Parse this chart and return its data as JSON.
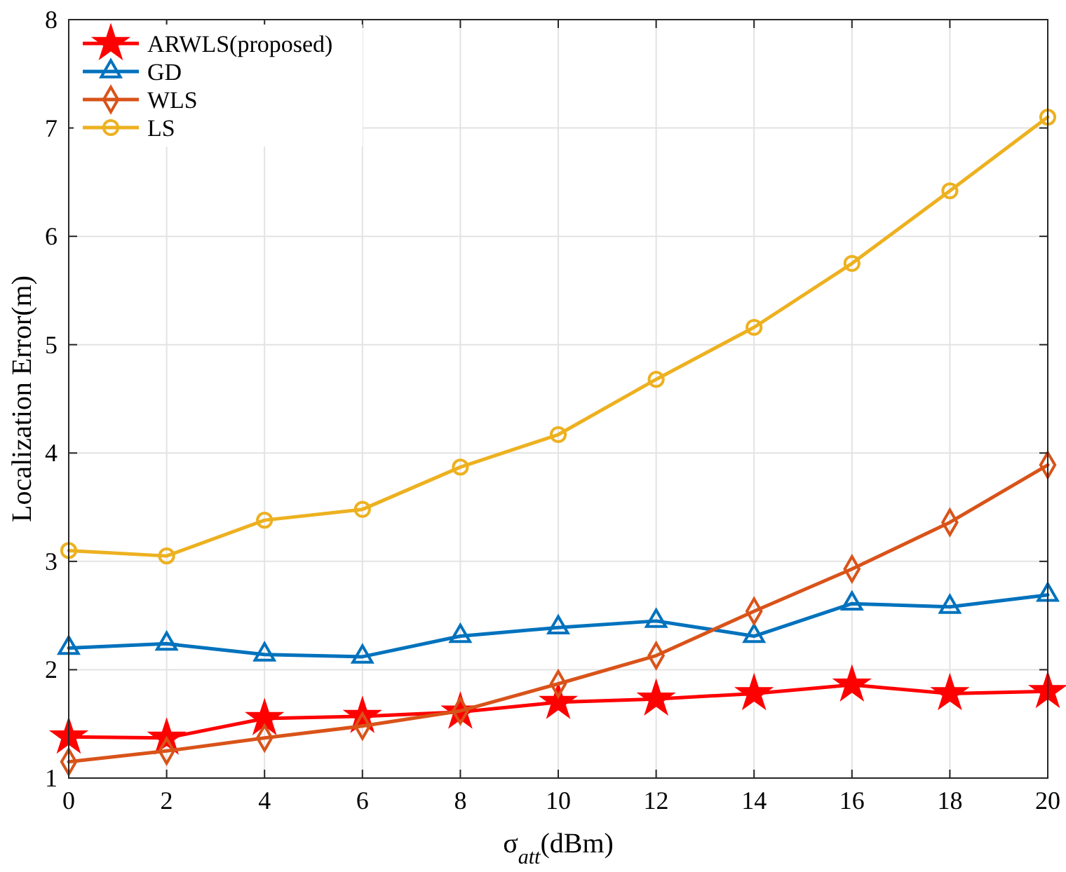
{
  "chart_data": {
    "type": "line",
    "xlabel": "σ$_{att}$(dBm)",
    "ylabel": "Localization Error(m)",
    "x": [
      0,
      2,
      4,
      6,
      8,
      10,
      12,
      14,
      16,
      18,
      20
    ],
    "series": [
      {
        "name": "ARWLS(proposed)",
        "color": "#ff0000",
        "marker": "star",
        "values": [
          1.38,
          1.37,
          1.55,
          1.57,
          1.61,
          1.7,
          1.73,
          1.78,
          1.86,
          1.78,
          1.8
        ]
      },
      {
        "name": "GD",
        "color": "#0072bd",
        "marker": "triangle",
        "values": [
          2.2,
          2.24,
          2.14,
          2.12,
          2.31,
          2.39,
          2.45,
          2.31,
          2.61,
          2.58,
          2.69
        ]
      },
      {
        "name": "WLS",
        "color": "#d95319",
        "marker": "diamond",
        "values": [
          1.15,
          1.25,
          1.37,
          1.48,
          1.62,
          1.87,
          2.13,
          2.54,
          2.93,
          3.36,
          3.89
        ]
      },
      {
        "name": "LS",
        "color": "#edb120",
        "marker": "circle",
        "values": [
          3.1,
          3.05,
          3.38,
          3.48,
          3.87,
          4.17,
          4.68,
          5.16,
          5.75,
          6.42,
          7.1
        ]
      }
    ],
    "xlim": [
      0,
      20
    ],
    "xticks": [
      0,
      2,
      4,
      6,
      8,
      10,
      12,
      14,
      16,
      18,
      20
    ],
    "ylim": [
      1,
      8
    ],
    "yticks": [
      1,
      2,
      3,
      4,
      5,
      6,
      7,
      8
    ],
    "grid": true,
    "legend": "top left",
    "line_style": "solid"
  }
}
